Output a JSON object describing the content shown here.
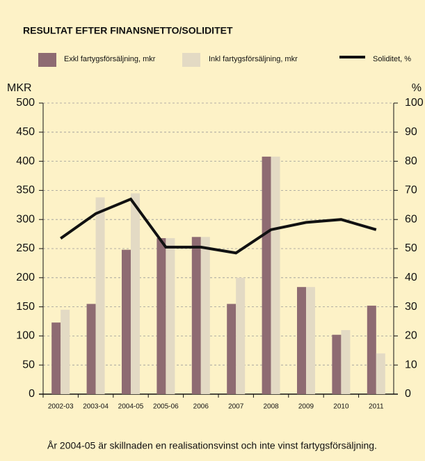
{
  "chart_data": {
    "type": "bar",
    "title": "RESULTAT EFTER FINANSNETTO/SOLIDITET",
    "y_label": "MKR",
    "y2_label": "%",
    "annotation": "År 2004-05 är skillnaden en realisationsvinst och inte vinst fartygsförsäljning.",
    "categories": [
      "2002-03",
      "2003-04",
      "2004-05",
      "2005-06",
      "2006",
      "2007",
      "2008",
      "2009",
      "2010",
      "2011"
    ],
    "series": [
      {
        "name": "Exkl fartygsförsäljning, mkr",
        "color": "#8e6b72",
        "values": [
          123,
          155,
          248,
          268,
          270,
          155,
          408,
          184,
          102,
          152
        ]
      },
      {
        "name": "Inkl fartygsförsäljning, mkr",
        "color": "#e3dac4",
        "values": [
          145,
          338,
          345,
          268,
          270,
          200,
          408,
          184,
          110,
          70
        ]
      },
      {
        "name": "Soliditet, %",
        "color": "#111111",
        "axis": "y2",
        "values": [
          53.5,
          62,
          67,
          50.5,
          50.5,
          48.5,
          56.5,
          59,
          60,
          56.5
        ]
      }
    ],
    "ylim": [
      0,
      500
    ],
    "yticks": [
      0,
      50,
      100,
      150,
      200,
      250,
      300,
      350,
      400,
      450,
      500
    ],
    "y2lim": [
      0,
      100
    ],
    "y2ticks": [
      0,
      10,
      20,
      30,
      40,
      50,
      60,
      70,
      80,
      90,
      100
    ],
    "grid": true
  }
}
